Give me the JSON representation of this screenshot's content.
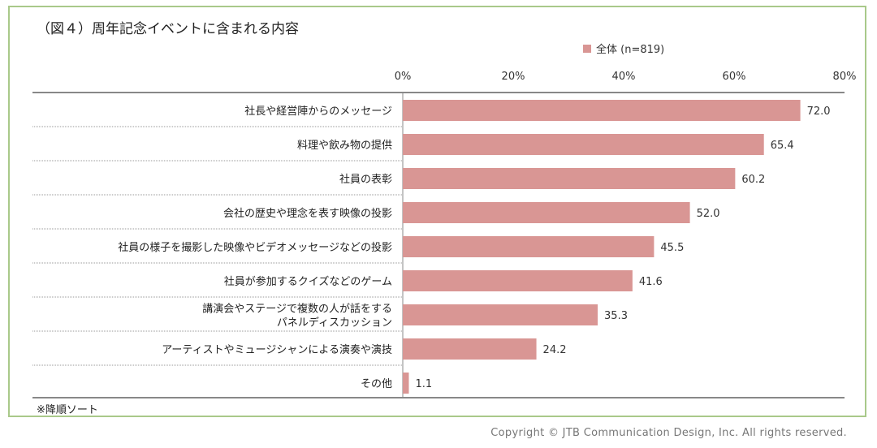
{
  "title": "（図４）周年記念イベントに含まれる内容",
  "legend": {
    "label": "全体 (n=819)",
    "color": "#d99694"
  },
  "footnote": "※降順ソート",
  "copyright": "Copyright  ©  JTB Communication  Design,  Inc.  All rights reserved.",
  "colors": {
    "bar": "#d99694",
    "frame": "#a9c98a",
    "axis": "#888888",
    "separator": "#999999"
  },
  "chart_data": {
    "type": "bar",
    "orientation": "horizontal",
    "title": "（図４）周年記念イベントに含まれる内容",
    "xlim": [
      0,
      80
    ],
    "ticks": [
      "0%",
      "20%",
      "40%",
      "60%",
      "80%"
    ],
    "tick_values": [
      0,
      20,
      40,
      60,
      80
    ],
    "categories": [
      [
        "社長や経営陣からのメッセージ"
      ],
      [
        "料理や飲み物の提供"
      ],
      [
        "社員の表彰"
      ],
      [
        "会社の歴史や理念を表す映像の投影"
      ],
      [
        "社員の様子を撮影した映像やビデオメッセージなどの投影"
      ],
      [
        "社員が参加するクイズなどのゲーム"
      ],
      [
        "講演会やステージで複数の人が話をする",
        "パネルディスカッション"
      ],
      [
        "アーティストやミュージシャンによる演奏や演技"
      ],
      [
        "その他"
      ]
    ],
    "series": [
      {
        "name": "全体 (n=819)",
        "values": [
          72.0,
          65.4,
          60.2,
          52.0,
          45.5,
          41.6,
          35.3,
          24.2,
          1.1
        ]
      }
    ],
    "value_labels": [
      "72.0",
      "65.4",
      "60.2",
      "52.0",
      "45.5",
      "41.6",
      "35.3",
      "24.2",
      "1.1"
    ],
    "legend_position": "top-right",
    "grid": false
  }
}
